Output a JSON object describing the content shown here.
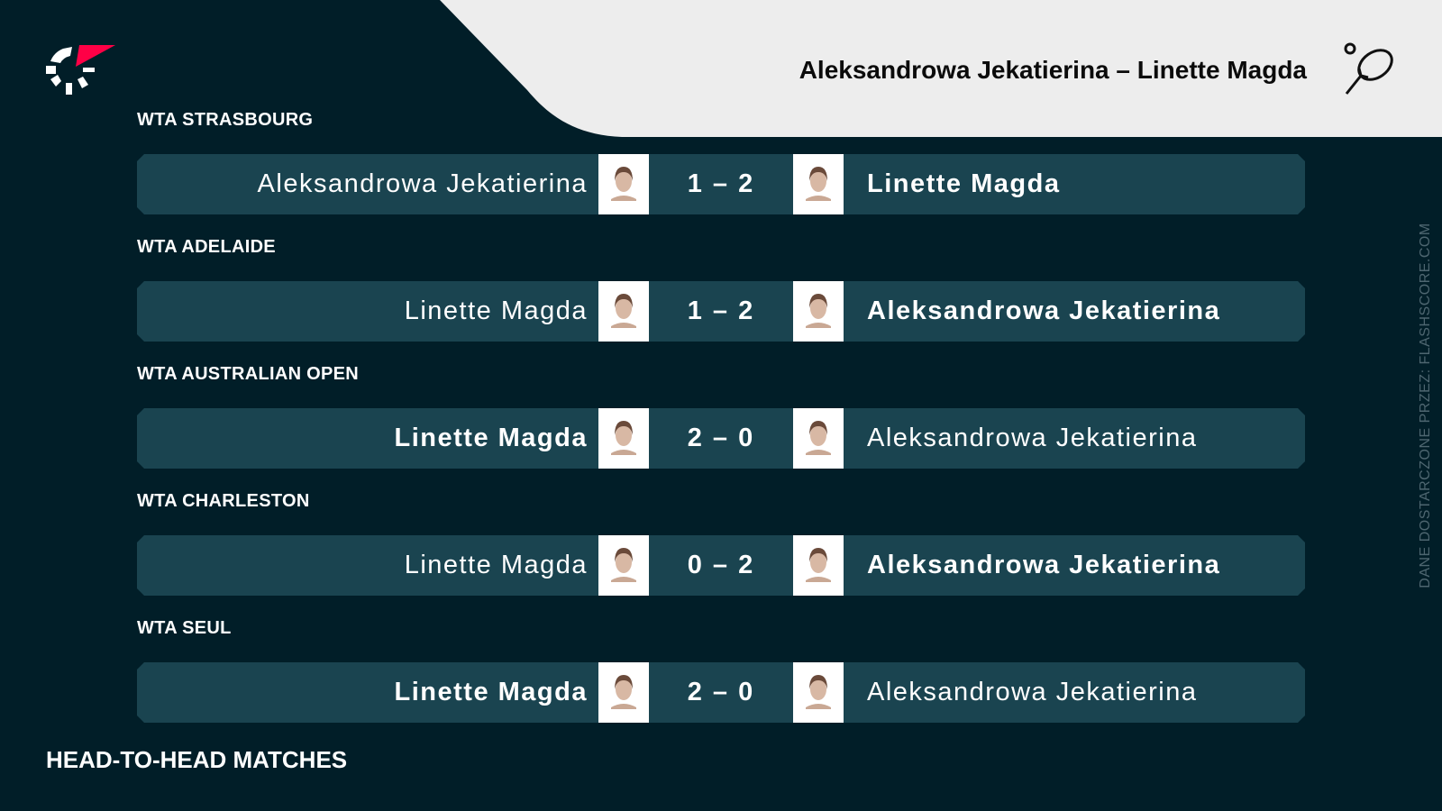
{
  "header": {
    "title": "Aleksandrowa Jekatierina – Linette Magda",
    "sport_icon": "tennis-racket-icon",
    "logo": "flashscore-logo"
  },
  "matches": [
    {
      "tournament": "WTA STRASBOURG",
      "home": "Aleksandrowa Jekatierina",
      "away": "Linette Magda",
      "score": "1 – 2",
      "winner": "away"
    },
    {
      "tournament": "WTA ADELAIDE",
      "home": "Linette Magda",
      "away": "Aleksandrowa Jekatierina",
      "score": "1 – 2",
      "winner": "away"
    },
    {
      "tournament": "WTA AUSTRALIAN OPEN",
      "home": "Linette Magda",
      "away": "Aleksandrowa Jekatierina",
      "score": "2 – 0",
      "winner": "home"
    },
    {
      "tournament": "WTA CHARLESTON",
      "home": "Linette Magda",
      "away": "Aleksandrowa Jekatierina",
      "score": "0 – 2",
      "winner": "away"
    },
    {
      "tournament": "WTA SEUL",
      "home": "Linette Magda",
      "away": "Aleksandrowa Jekatierina",
      "score": "2 – 0",
      "winner": "home"
    }
  ],
  "footer": {
    "title": "HEAD-TO-HEAD MATCHES",
    "credit": "DANE DOSTARCZONE PRZEZ: FLASHSCORE.COM"
  },
  "colors": {
    "background": "#011e28",
    "row": "#1a4450",
    "header": "#ededed",
    "accent": "#ff0046"
  }
}
